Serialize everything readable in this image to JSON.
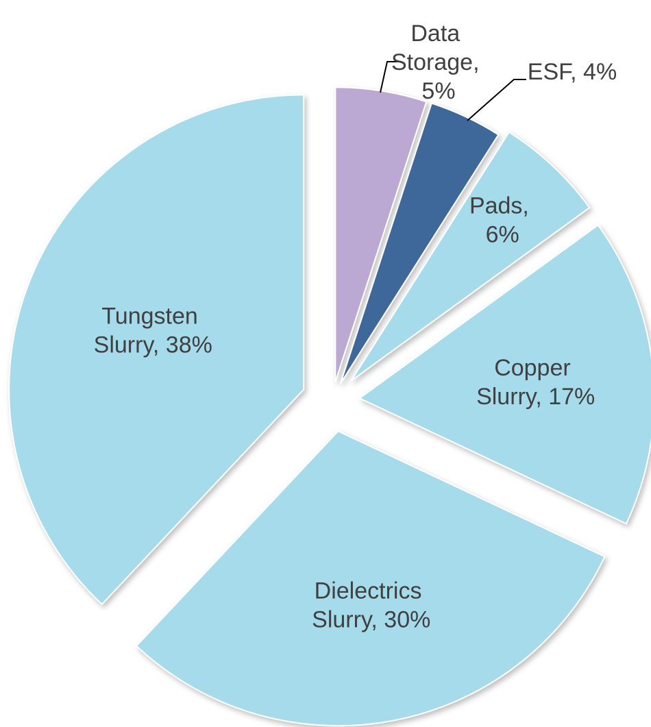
{
  "chart_data": {
    "type": "pie",
    "categories": [
      "Data Storage",
      "ESF",
      "Pads",
      "Copper Slurry",
      "Dielectrics Slurry",
      "Tungsten Slurry"
    ],
    "values": [
      5,
      4,
      6,
      17,
      30,
      38
    ],
    "value_labels": [
      "Data Storage, 5%",
      "ESF, 4%",
      "Pads, 6%",
      "Copper Slurry, 17%",
      "Dielectrics Slurry, 30%",
      "Tungsten Slurry, 38%"
    ],
    "colors": [
      "#bba9d3",
      "#3d6799",
      "#a6dbeb",
      "#a6dbeb",
      "#a6dbeb",
      "#a6dbeb"
    ]
  }
}
